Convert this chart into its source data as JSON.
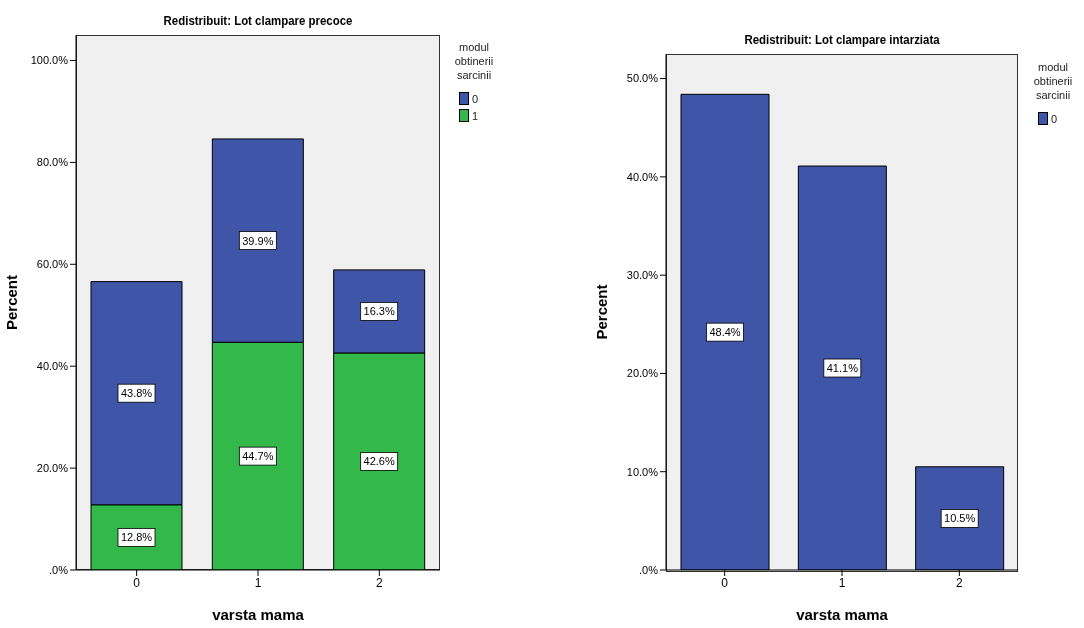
{
  "chart_data": [
    {
      "type": "bar",
      "title": "Redistribuit: Lot clampare precoce",
      "xlabel": "varsta mama",
      "ylabel": "Percent",
      "legend_title": "modul obtinerii sarcinii",
      "categories": [
        "0",
        "1",
        "2"
      ],
      "stacked": true,
      "series": [
        {
          "name": "1",
          "color": "#33b84a",
          "values": [
            12.8,
            44.7,
            42.6
          ],
          "value_labels": [
            "12.8%",
            "44.7%",
            "42.6%"
          ]
        },
        {
          "name": "0",
          "color": "#3f55a8",
          "values": [
            43.8,
            39.9,
            16.3
          ],
          "value_labels": [
            "43.8%",
            "39.9%",
            "16.3%"
          ]
        }
      ],
      "ylim": [
        0,
        105
      ],
      "yticks": [
        {
          "value": 0,
          "label": ".0%"
        },
        {
          "value": 20,
          "label": "20.0%"
        },
        {
          "value": 40,
          "label": "40.0%"
        },
        {
          "value": 60,
          "label": "60.0%"
        },
        {
          "value": 80,
          "label": "80.0%"
        },
        {
          "value": 100,
          "label": "100.0%"
        }
      ],
      "legend": "top right",
      "grid": false
    },
    {
      "type": "bar",
      "title": "Redistribuit: Lot clampare intarziata",
      "xlabel": "varsta mama",
      "ylabel": "Percent",
      "legend_title": "modul obtinerii sarcinii",
      "categories": [
        "0",
        "1",
        "2"
      ],
      "series": [
        {
          "name": "0",
          "color": "#3f55a8",
          "values": [
            48.4,
            41.1,
            10.5
          ],
          "value_labels": [
            "48.4%",
            "41.1%",
            "10.5%"
          ]
        }
      ],
      "ylim": [
        0,
        52.5
      ],
      "yticks": [
        {
          "value": 0,
          "label": ".0%"
        },
        {
          "value": 10,
          "label": "10.0%"
        },
        {
          "value": 20,
          "label": "20.0%"
        },
        {
          "value": 30,
          "label": "30.0%"
        },
        {
          "value": 40,
          "label": "40.0%"
        },
        {
          "value": 50,
          "label": "50.0%"
        }
      ],
      "legend": "top right",
      "grid": false
    }
  ]
}
